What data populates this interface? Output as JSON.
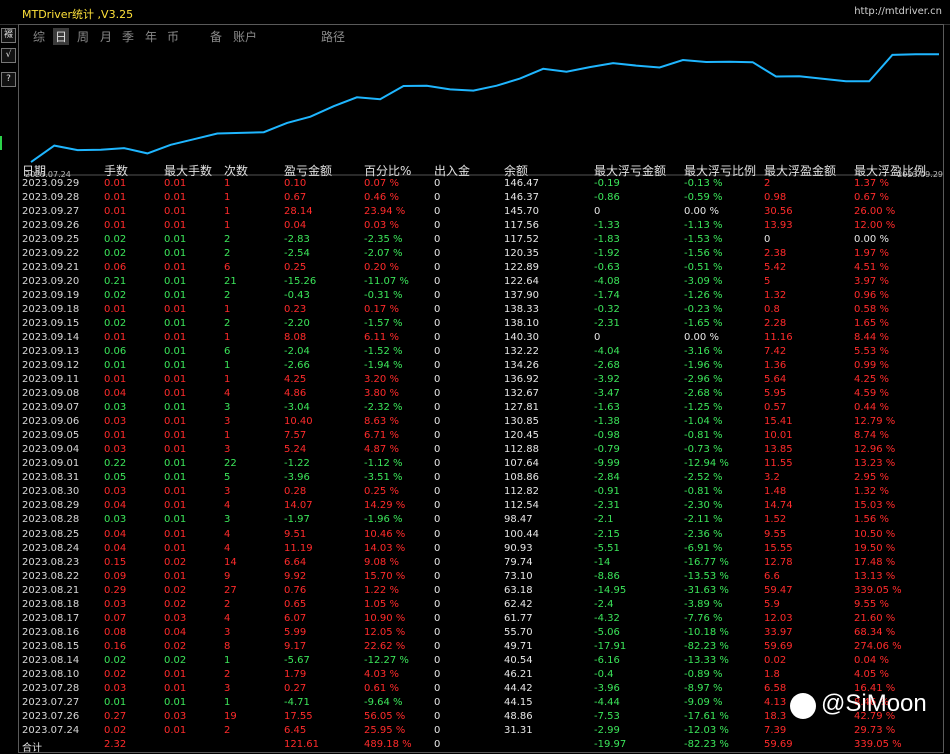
{
  "title": "MTDriver统计 ,V3.25",
  "url": "http://mtdriver.cn",
  "side_buttons": [
    "裰",
    "√",
    "?"
  ],
  "tabs": [
    "综",
    "日",
    "周",
    "月",
    "季",
    "年",
    "币",
    "账户",
    "路径"
  ],
  "tab_extra": "备",
  "active_tab": 1,
  "chart_data": {
    "type": "line",
    "x_start": "2023.07.24",
    "x_end": "2023.09.29",
    "x": [
      "2023.07.24",
      "2023.07.26",
      "2023.07.27",
      "2023.07.28",
      "2023.08.10",
      "2023.08.14",
      "2023.08.15",
      "2023.08.16",
      "2023.08.17",
      "2023.08.18",
      "2023.08.21",
      "2023.08.22",
      "2023.08.23",
      "2023.08.24",
      "2023.08.25",
      "2023.08.28",
      "2023.08.29",
      "2023.08.30",
      "2023.08.31",
      "2023.09.01",
      "2023.09.04",
      "2023.09.05",
      "2023.09.06",
      "2023.09.07",
      "2023.09.08",
      "2023.09.11",
      "2023.09.12",
      "2023.09.13",
      "2023.09.14",
      "2023.09.15",
      "2023.09.18",
      "2023.09.19",
      "2023.09.20",
      "2023.09.21",
      "2023.09.22",
      "2023.09.25",
      "2023.09.26",
      "2023.09.27",
      "2023.09.28",
      "2023.09.29"
    ],
    "values": [
      31.31,
      48.86,
      44.15,
      44.42,
      46.21,
      40.54,
      49.71,
      55.7,
      61.77,
      62.42,
      63.18,
      73.1,
      79.74,
      90.93,
      100.44,
      98.47,
      112.54,
      112.82,
      108.86,
      107.64,
      112.88,
      120.45,
      130.85,
      127.81,
      132.67,
      136.92,
      134.26,
      132.22,
      140.3,
      138.1,
      138.33,
      137.9,
      122.64,
      122.89,
      120.35,
      117.52,
      117.56,
      145.7,
      146.37,
      146.47
    ],
    "color": "#1fb6ff",
    "grid": false
  },
  "table": {
    "headers": [
      "日期",
      "手数",
      "最大手数",
      "次数",
      "盈亏金额",
      "百分比%",
      "出入金",
      "余额",
      "最大浮亏金额",
      "最大浮亏比例",
      "最大浮盈金额",
      "最大浮盈比例"
    ],
    "rows": [
      [
        "2023.09.29",
        "0.01",
        "0.01",
        "1",
        "0.10",
        "0.07 %",
        "0",
        "146.47",
        "-0.19",
        "-0.13 %",
        "2",
        "1.37 %"
      ],
      [
        "2023.09.28",
        "0.01",
        "0.01",
        "1",
        "0.67",
        "0.46 %",
        "0",
        "146.37",
        "-0.86",
        "-0.59 %",
        "0.98",
        "0.67 %"
      ],
      [
        "2023.09.27",
        "0.01",
        "0.01",
        "1",
        "28.14",
        "23.94 %",
        "0",
        "145.70",
        "0",
        "0.00 %",
        "30.56",
        "26.00 %"
      ],
      [
        "2023.09.26",
        "0.01",
        "0.01",
        "1",
        "0.04",
        "0.03 %",
        "0",
        "117.56",
        "-1.33",
        "-1.13 %",
        "13.93",
        "12.00 %"
      ],
      [
        "2023.09.25",
        "0.02",
        "0.01",
        "2",
        "-2.83",
        "-2.35 %",
        "0",
        "117.52",
        "-1.83",
        "-1.53 %",
        "0",
        "0.00 %"
      ],
      [
        "2023.09.22",
        "0.02",
        "0.01",
        "2",
        "-2.54",
        "-2.07 %",
        "0",
        "120.35",
        "-1.92",
        "-1.56 %",
        "2.38",
        "1.97 %"
      ],
      [
        "2023.09.21",
        "0.06",
        "0.01",
        "6",
        "0.25",
        "0.20 %",
        "0",
        "122.89",
        "-0.63",
        "-0.51 %",
        "5.42",
        "4.51 %"
      ],
      [
        "2023.09.20",
        "0.21",
        "0.01",
        "21",
        "-15.26",
        "-11.07 %",
        "0",
        "122.64",
        "-4.08",
        "-3.09 %",
        "5",
        "3.97 %"
      ],
      [
        "2023.09.19",
        "0.02",
        "0.01",
        "2",
        "-0.43",
        "-0.31 %",
        "0",
        "137.90",
        "-1.74",
        "-1.26 %",
        "1.32",
        "0.96 %"
      ],
      [
        "2023.09.18",
        "0.01",
        "0.01",
        "1",
        "0.23",
        "0.17 %",
        "0",
        "138.33",
        "-0.32",
        "-0.23 %",
        "0.8",
        "0.58 %"
      ],
      [
        "2023.09.15",
        "0.02",
        "0.01",
        "2",
        "-2.20",
        "-1.57 %",
        "0",
        "138.10",
        "-2.31",
        "-1.65 %",
        "2.28",
        "1.65 %"
      ],
      [
        "2023.09.14",
        "0.01",
        "0.01",
        "1",
        "8.08",
        "6.11 %",
        "0",
        "140.30",
        "0",
        "0.00 %",
        "11.16",
        "8.44 %"
      ],
      [
        "2023.09.13",
        "0.06",
        "0.01",
        "6",
        "-2.04",
        "-1.52 %",
        "0",
        "132.22",
        "-4.04",
        "-3.16 %",
        "7.42",
        "5.53 %"
      ],
      [
        "2023.09.12",
        "0.01",
        "0.01",
        "1",
        "-2.66",
        "-1.94 %",
        "0",
        "134.26",
        "-2.68",
        "-1.96 %",
        "1.36",
        "0.99 %"
      ],
      [
        "2023.09.11",
        "0.01",
        "0.01",
        "1",
        "4.25",
        "3.20 %",
        "0",
        "136.92",
        "-3.92",
        "-2.96 %",
        "5.64",
        "4.25 %"
      ],
      [
        "2023.09.08",
        "0.04",
        "0.01",
        "4",
        "4.86",
        "3.80 %",
        "0",
        "132.67",
        "-3.47",
        "-2.68 %",
        "5.95",
        "4.59 %"
      ],
      [
        "2023.09.07",
        "0.03",
        "0.01",
        "3",
        "-3.04",
        "-2.32 %",
        "0",
        "127.81",
        "-1.63",
        "-1.25 %",
        "0.57",
        "0.44 %"
      ],
      [
        "2023.09.06",
        "0.03",
        "0.01",
        "3",
        "10.40",
        "8.63 %",
        "0",
        "130.85",
        "-1.38",
        "-1.04 %",
        "15.41",
        "12.79 %"
      ],
      [
        "2023.09.05",
        "0.01",
        "0.01",
        "1",
        "7.57",
        "6.71 %",
        "0",
        "120.45",
        "-0.98",
        "-0.81 %",
        "10.01",
        "8.74 %"
      ],
      [
        "2023.09.04",
        "0.03",
        "0.01",
        "3",
        "5.24",
        "4.87 %",
        "0",
        "112.88",
        "-0.79",
        "-0.73 %",
        "13.85",
        "12.96 %"
      ],
      [
        "2023.09.01",
        "0.22",
        "0.01",
        "22",
        "-1.22",
        "-1.12 %",
        "0",
        "107.64",
        "-9.99",
        "-12.94 %",
        "11.55",
        "13.23 %"
      ],
      [
        "2023.08.31",
        "0.05",
        "0.01",
        "5",
        "-3.96",
        "-3.51 %",
        "0",
        "108.86",
        "-2.84",
        "-2.52 %",
        "3.2",
        "2.95 %"
      ],
      [
        "2023.08.30",
        "0.03",
        "0.01",
        "3",
        "0.28",
        "0.25 %",
        "0",
        "112.82",
        "-0.91",
        "-0.81 %",
        "1.48",
        "1.32 %"
      ],
      [
        "2023.08.29",
        "0.04",
        "0.01",
        "4",
        "14.07",
        "14.29 %",
        "0",
        "112.54",
        "-2.31",
        "-2.30 %",
        "14.74",
        "15.03 %"
      ],
      [
        "2023.08.28",
        "0.03",
        "0.01",
        "3",
        "-1.97",
        "-1.96 %",
        "0",
        "98.47",
        "-2.1",
        "-2.11 %",
        "1.52",
        "1.56 %"
      ],
      [
        "2023.08.25",
        "0.04",
        "0.01",
        "4",
        "9.51",
        "10.46 %",
        "0",
        "100.44",
        "-2.15",
        "-2.36 %",
        "9.55",
        "10.50 %"
      ],
      [
        "2023.08.24",
        "0.04",
        "0.01",
        "4",
        "11.19",
        "14.03 %",
        "0",
        "90.93",
        "-5.51",
        "-6.91 %",
        "15.55",
        "19.50 %"
      ],
      [
        "2023.08.23",
        "0.15",
        "0.02",
        "14",
        "6.64",
        "9.08 %",
        "0",
        "79.74",
        "-14",
        "-16.77 %",
        "12.78",
        "17.48 %"
      ],
      [
        "2023.08.22",
        "0.09",
        "0.01",
        "9",
        "9.92",
        "15.70 %",
        "0",
        "73.10",
        "-8.86",
        "-13.53 %",
        "6.6",
        "13.13 %"
      ],
      [
        "2023.08.21",
        "0.29",
        "0.02",
        "27",
        "0.76",
        "1.22 %",
        "0",
        "63.18",
        "-14.95",
        "-31.63 %",
        "59.47",
        "339.05 %"
      ],
      [
        "2023.08.18",
        "0.03",
        "0.02",
        "2",
        "0.65",
        "1.05 %",
        "0",
        "62.42",
        "-2.4",
        "-3.89 %",
        "5.9",
        "9.55 %"
      ],
      [
        "2023.08.17",
        "0.07",
        "0.03",
        "4",
        "6.07",
        "10.90 %",
        "0",
        "61.77",
        "-4.32",
        "-7.76 %",
        "12.03",
        "21.60 %"
      ],
      [
        "2023.08.16",
        "0.08",
        "0.04",
        "3",
        "5.99",
        "12.05 %",
        "0",
        "55.70",
        "-5.06",
        "-10.18 %",
        "33.97",
        "68.34 %"
      ],
      [
        "2023.08.15",
        "0.16",
        "0.02",
        "8",
        "9.17",
        "22.62 %",
        "0",
        "49.71",
        "-17.91",
        "-82.23 %",
        "59.69",
        "274.06 %"
      ],
      [
        "2023.08.14",
        "0.02",
        "0.02",
        "1",
        "-5.67",
        "-12.27 %",
        "0",
        "40.54",
        "-6.16",
        "-13.33 %",
        "0.02",
        "0.04 %"
      ],
      [
        "2023.08.10",
        "0.02",
        "0.01",
        "2",
        "1.79",
        "4.03 %",
        "0",
        "46.21",
        "-0.4",
        "-0.89 %",
        "1.8",
        "4.05 %"
      ],
      [
        "2023.07.28",
        "0.03",
        "0.01",
        "3",
        "0.27",
        "0.61 %",
        "0",
        "44.42",
        "-3.96",
        "-8.97 %",
        "6.58",
        "16.41 %"
      ],
      [
        "2023.07.27",
        "0.01",
        "0.01",
        "1",
        "-4.71",
        "-9.64 %",
        "0",
        "44.15",
        "-4.44",
        "-9.09 %",
        "4.13",
        "8.46 %"
      ],
      [
        "2023.07.26",
        "0.27",
        "0.03",
        "19",
        "17.55",
        "56.05 %",
        "0",
        "48.86",
        "-7.53",
        "-17.61 %",
        "18.3",
        "42.79 %"
      ],
      [
        "2023.07.24",
        "0.02",
        "0.01",
        "2",
        "6.45",
        "25.95 %",
        "0",
        "31.31",
        "-2.99",
        "-12.03 %",
        "7.39",
        "29.73 %"
      ]
    ],
    "total": [
      "合计",
      "2.32",
      "",
      "",
      "121.61",
      "489.18 %",
      "0",
      "",
      "-19.97",
      "-82.23 %",
      "59.69",
      "339.05 %"
    ]
  },
  "watermark": "@SiMoon",
  "colors": {
    "up": "#ff2b2b",
    "down": "#3be55a",
    "line": "#1fb6ff",
    "title": "#ffe23a"
  }
}
